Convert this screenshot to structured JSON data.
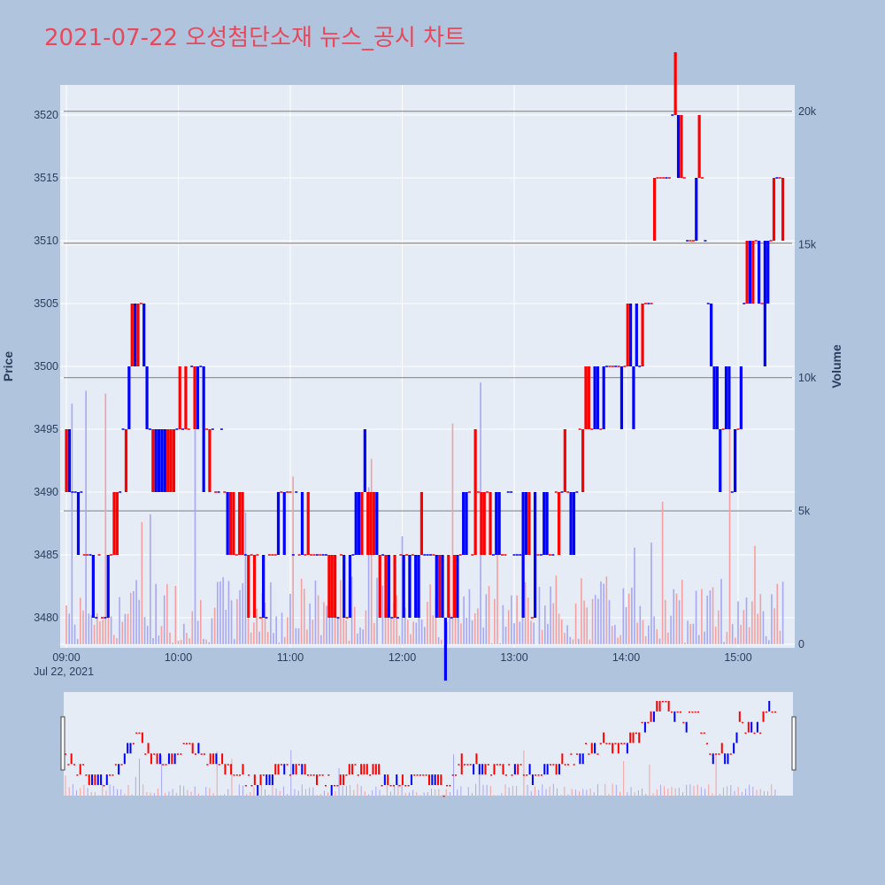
{
  "title": "2021-07-22 오성첨단소재 뉴스_공시 차트",
  "colors": {
    "up": "#ff0000",
    "down": "#0000ff",
    "plot_bg": "#e5ecf6",
    "paper_bg": "#b0c4de",
    "title": "#e8485a"
  },
  "chart_data": {
    "type": "candlestick",
    "title": "2021-07-22 오성첨단소재 뉴스_공시 차트",
    "date_label": "Jul 22, 2021",
    "price_axis": {
      "label": "Price",
      "range": [
        3477.5,
        3522.5
      ],
      "ticks": [
        "3480",
        "3485",
        "3490",
        "3495",
        "3500",
        "3505",
        "3510",
        "3515",
        "3520"
      ]
    },
    "volume_axis": {
      "label": "Volume",
      "range": [
        0,
        20000
      ],
      "ticks": [
        "0",
        "5k",
        "10k",
        "15k",
        "20k"
      ]
    },
    "time_axis": {
      "range": [
        "09:00",
        "15:30"
      ],
      "ticks": [
        "09:00",
        "10:00",
        "11:00",
        "12:00",
        "13:00",
        "14:00",
        "15:00"
      ]
    },
    "reference_lines": [
      3520.3,
      3509.8,
      3499.1,
      3488.5
    ],
    "rangeslider": true,
    "price_series_summary": [
      {
        "time": "09:00",
        "price": 3495
      },
      {
        "time": "09:10",
        "price": 3485
      },
      {
        "time": "09:20",
        "price": 3480
      },
      {
        "time": "09:30",
        "price": 3490
      },
      {
        "time": "09:35",
        "price": 3500
      },
      {
        "time": "09:40",
        "price": 3505
      },
      {
        "time": "09:45",
        "price": 3495
      },
      {
        "time": "09:55",
        "price": 3490
      },
      {
        "time": "10:05",
        "price": 3500
      },
      {
        "time": "10:15",
        "price": 3495
      },
      {
        "time": "10:25",
        "price": 3490
      },
      {
        "time": "10:35",
        "price": 3485
      },
      {
        "time": "10:45",
        "price": 3480
      },
      {
        "time": "11:00",
        "price": 3490
      },
      {
        "time": "11:15",
        "price": 3485
      },
      {
        "time": "11:25",
        "price": 3480
      },
      {
        "time": "11:40",
        "price": 3490
      },
      {
        "time": "11:55",
        "price": 3480
      },
      {
        "time": "12:10",
        "price": 3485
      },
      {
        "time": "12:25",
        "price": 3480
      },
      {
        "time": "12:35",
        "price": 3490
      },
      {
        "time": "13:10",
        "price": 3485
      },
      {
        "time": "13:30",
        "price": 3490
      },
      {
        "time": "13:40",
        "price": 3495
      },
      {
        "time": "13:50",
        "price": 3500
      },
      {
        "time": "14:05",
        "price": 3500
      },
      {
        "time": "14:15",
        "price": 3510
      },
      {
        "time": "14:20",
        "price": 3515
      },
      {
        "time": "14:25",
        "price": 3520
      },
      {
        "time": "14:35",
        "price": 3510
      },
      {
        "time": "14:40",
        "price": 3515
      },
      {
        "time": "14:50",
        "price": 3495
      },
      {
        "time": "15:00",
        "price": 3495
      },
      {
        "time": "15:05",
        "price": 3510
      },
      {
        "time": "15:15",
        "price": 3505
      },
      {
        "time": "15:20",
        "price": 3515
      }
    ]
  }
}
